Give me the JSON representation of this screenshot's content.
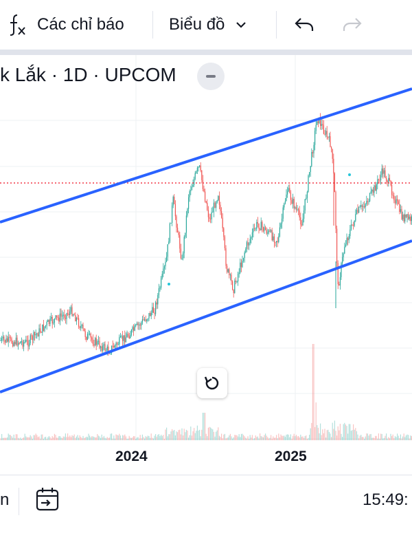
{
  "toolbar": {
    "indicators_label": "Các chỉ báo",
    "chart_type_label": "Biểu đồ",
    "icons": [
      "function-icon",
      "chevron-down-icon",
      "undo-icon",
      "redo-icon"
    ]
  },
  "symbol": {
    "title": "k Lắk · 1D · UPCOM"
  },
  "chart_data": {
    "type": "candlestick",
    "timeframe": "1D",
    "x_tick_labels": [
      "2024",
      "2025"
    ],
    "grid": true,
    "drawings": [
      "parallel-channel-upper-line",
      "parallel-channel-lower-line"
    ],
    "price_line": "dotted-red",
    "volume_bars": true,
    "colors": {
      "up": "#26a69a",
      "down": "#ef5350",
      "channel": "#2962ff",
      "price_line": "#f23645"
    }
  },
  "bottom_bar": {
    "left_label": "n",
    "time": "15:49:",
    "icons": [
      "calendar-goto-icon"
    ]
  },
  "buttons": {
    "reset_icon": "reset-icon",
    "collapse_icon": "collapse-icon"
  }
}
